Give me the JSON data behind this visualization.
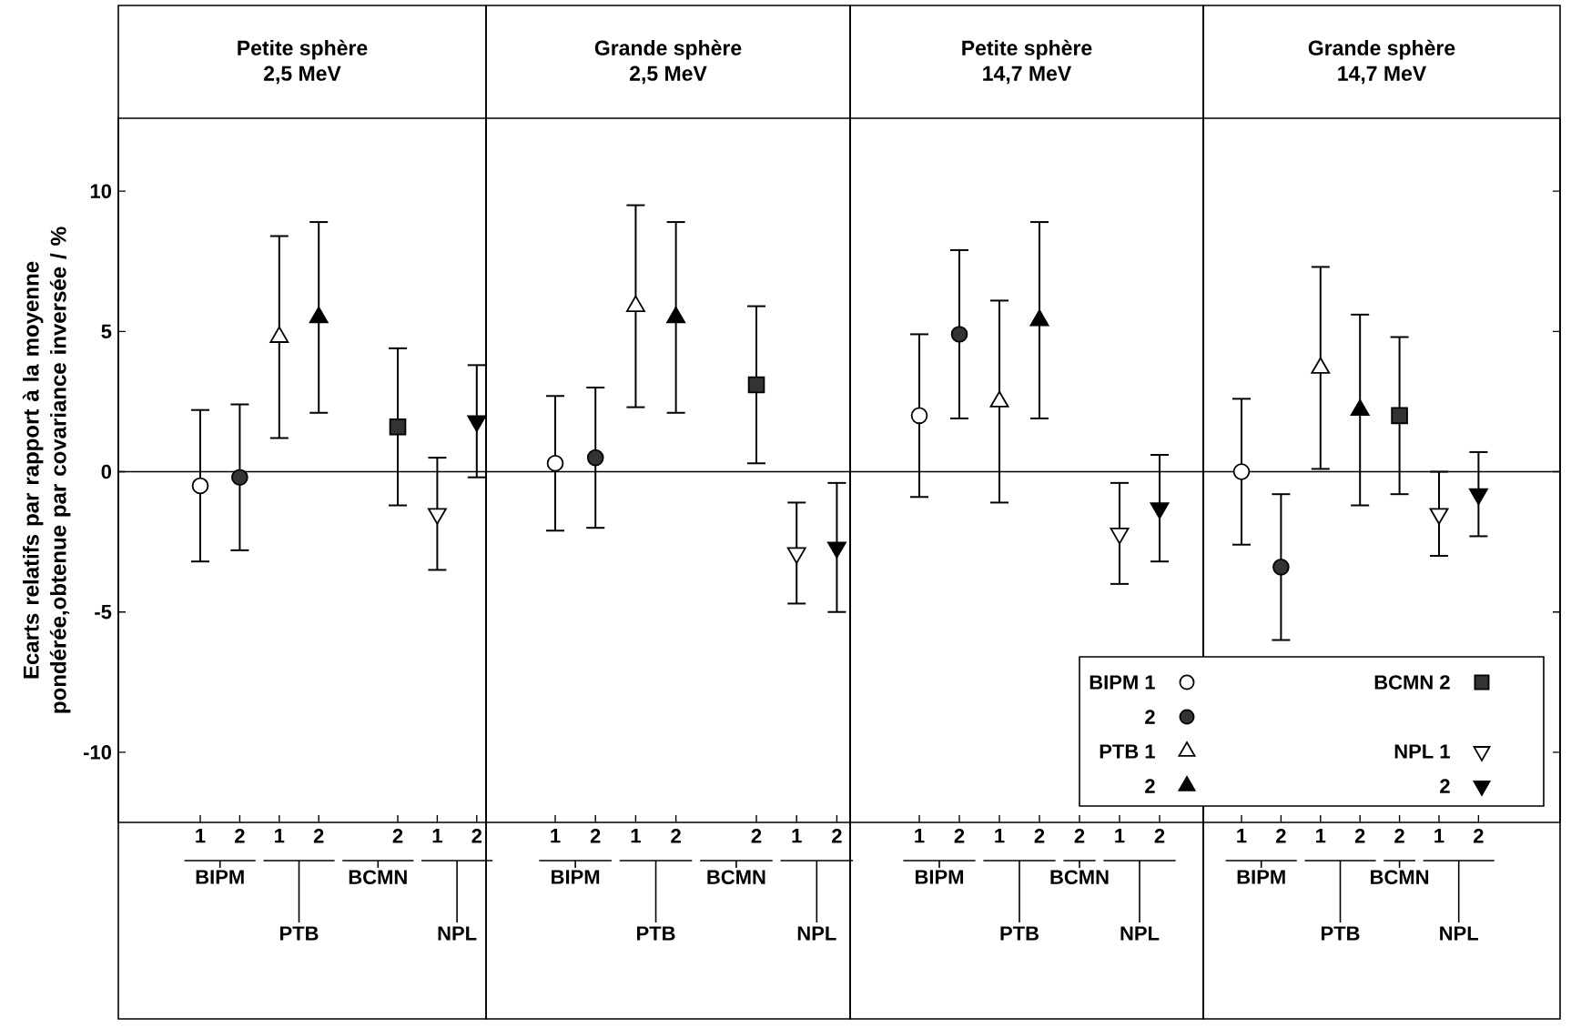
{
  "chart_data": [
    {
      "type": "scatter",
      "title": "Petite sphère",
      "subtitle": "2,5 MeV",
      "ylabel": "Ecarts relatifs par rapport à la moyenne pondérée,obtenue par covariance inversée / %",
      "categories": [
        "1",
        "2",
        "1",
        "2",
        null,
        "2",
        "1",
        "2"
      ],
      "annotations": [
        "BIPM",
        "PTB",
        "BCMN",
        "NPL"
      ],
      "ylim": [
        -12.5,
        12.6
      ],
      "yticks": [
        10,
        5,
        0,
        -5,
        -10
      ],
      "ref_lines": [
        {
          "axis": "y",
          "value": 0
        }
      ],
      "series": [
        {
          "marker": "circle",
          "color": "#ffffff",
          "values": [
            -0.5,
            null,
            null,
            null,
            null,
            null,
            null,
            null
          ],
          "errors": [
            2.7,
            null,
            null,
            null,
            null,
            null,
            null,
            null
          ]
        },
        {
          "marker": "circle",
          "color": "#333333",
          "values": [
            null,
            -0.2,
            null,
            null,
            null,
            null,
            null,
            null
          ],
          "errors": [
            null,
            2.6,
            null,
            null,
            null,
            null,
            null,
            null
          ]
        },
        {
          "marker": "triangle",
          "color": "#ffffff",
          "values": [
            null,
            null,
            4.8,
            null,
            null,
            null,
            null,
            null
          ],
          "errors": [
            null,
            null,
            3.6,
            null,
            null,
            null,
            null,
            null
          ]
        },
        {
          "marker": "triangle",
          "color": "#000000",
          "values": [
            null,
            null,
            null,
            5.5,
            null,
            null,
            null,
            null
          ],
          "errors": [
            null,
            null,
            null,
            3.4,
            null,
            null,
            null,
            null
          ]
        },
        {
          "marker": "square",
          "color": "#333333",
          "values": [
            null,
            null,
            null,
            null,
            null,
            1.6,
            null,
            null
          ],
          "errors": [
            null,
            null,
            null,
            null,
            null,
            2.8,
            null,
            null
          ]
        },
        {
          "marker": "triangle down",
          "color": "#ffffff",
          "values": [
            null,
            null,
            null,
            null,
            null,
            null,
            -1.5,
            null
          ],
          "errors": [
            null,
            null,
            null,
            null,
            null,
            null,
            2.0,
            null
          ]
        },
        {
          "marker": "triangle down",
          "color": "#000000",
          "values": [
            null,
            null,
            null,
            null,
            null,
            null,
            null,
            1.8
          ],
          "errors": [
            null,
            null,
            null,
            null,
            null,
            null,
            null,
            2.0
          ]
        }
      ]
    },
    {
      "type": "scatter",
      "title": "Grande sphère",
      "subtitle": "2,5 MeV",
      "categories": [
        "1",
        "2",
        "1",
        "2",
        null,
        "2",
        "1",
        "2"
      ],
      "annotations": [
        "BIPM",
        "PTB",
        "BCMN",
        "NPL"
      ],
      "ylim": [
        -12.5,
        12.6
      ],
      "yticks": [
        10,
        5,
        0,
        -5,
        -10
      ],
      "tick_labels": "x",
      "ref_lines": [
        {
          "axis": "y",
          "value": 0
        }
      ],
      "series": [
        {
          "marker": "circle",
          "color": "#ffffff",
          "values": [
            0.3,
            null,
            null,
            null,
            null,
            null,
            null,
            null
          ],
          "errors": [
            2.4,
            null,
            null,
            null,
            null,
            null,
            null,
            null
          ]
        },
        {
          "marker": "circle",
          "color": "#333333",
          "values": [
            null,
            0.5,
            null,
            null,
            null,
            null,
            null,
            null
          ],
          "errors": [
            null,
            2.5,
            null,
            null,
            null,
            null,
            null,
            null
          ]
        },
        {
          "marker": "triangle",
          "color": "#ffffff",
          "values": [
            null,
            null,
            5.9,
            null,
            null,
            null,
            null,
            null
          ],
          "errors": [
            null,
            null,
            3.6,
            null,
            null,
            null,
            null,
            null
          ]
        },
        {
          "marker": "triangle",
          "color": "#000000",
          "values": [
            null,
            null,
            null,
            5.5,
            null,
            null,
            null,
            null
          ],
          "errors": [
            null,
            null,
            null,
            3.4,
            null,
            null,
            null,
            null
          ]
        },
        {
          "marker": "square",
          "color": "#333333",
          "values": [
            null,
            null,
            null,
            null,
            null,
            3.1,
            null,
            null
          ],
          "errors": [
            null,
            null,
            null,
            null,
            null,
            2.8,
            null,
            null
          ]
        },
        {
          "marker": "triangle down",
          "color": "#ffffff",
          "values": [
            null,
            null,
            null,
            null,
            null,
            null,
            -2.9,
            null
          ],
          "errors": [
            null,
            null,
            null,
            null,
            null,
            null,
            1.8,
            null
          ]
        },
        {
          "marker": "triangle down",
          "color": "#000000",
          "values": [
            null,
            null,
            null,
            null,
            null,
            null,
            null,
            -2.7
          ],
          "errors": [
            null,
            null,
            null,
            null,
            null,
            null,
            null,
            2.3
          ]
        }
      ]
    },
    {
      "type": "scatter",
      "title": "Petite sphère",
      "subtitle": "14,7 MeV",
      "categories": [
        "1",
        "2",
        "1",
        "2",
        "2",
        "1",
        "2"
      ],
      "annotations": [
        "BIPM",
        "PTB",
        "BCMN",
        "NPL"
      ],
      "ylim": [
        -12.5,
        12.6
      ],
      "yticks": [
        10,
        5,
        0,
        -5,
        -10
      ],
      "tick_labels": "x",
      "ref_lines": [
        {
          "axis": "y",
          "value": 0
        }
      ],
      "series": [
        {
          "marker": "circle",
          "color": "#ffffff",
          "values": [
            2.0,
            null,
            null,
            null,
            null,
            null,
            null
          ],
          "errors": [
            2.9,
            null,
            null,
            null,
            null,
            null,
            null
          ]
        },
        {
          "marker": "circle",
          "color": "#333333",
          "values": [
            null,
            4.9,
            null,
            null,
            null,
            null,
            null
          ],
          "errors": [
            null,
            3.0,
            null,
            null,
            null,
            null,
            null
          ]
        },
        {
          "marker": "triangle",
          "color": "#ffffff",
          "values": [
            null,
            null,
            2.5,
            null,
            null,
            null,
            null
          ],
          "errors": [
            null,
            null,
            3.6,
            null,
            null,
            null,
            null
          ]
        },
        {
          "marker": "triangle",
          "color": "#000000",
          "values": [
            null,
            null,
            null,
            5.4,
            null,
            null,
            null
          ],
          "errors": [
            null,
            null,
            null,
            3.5,
            null,
            null,
            null
          ]
        },
        {
          "marker": "triangle down",
          "color": "#ffffff",
          "values": [
            null,
            null,
            null,
            null,
            null,
            -2.2,
            null
          ],
          "errors": [
            null,
            null,
            null,
            null,
            null,
            1.8,
            null
          ]
        },
        {
          "marker": "triangle down",
          "color": "#000000",
          "values": [
            null,
            null,
            null,
            null,
            null,
            null,
            -1.3
          ],
          "errors": [
            null,
            null,
            null,
            null,
            null,
            null,
            1.9
          ]
        }
      ]
    },
    {
      "type": "scatter",
      "title": "Grande sphère",
      "subtitle": "14,7 MeV",
      "categories": [
        "1",
        "2",
        "1",
        "2",
        "2",
        "1",
        "2"
      ],
      "annotations": [
        "BIPM",
        "PTB",
        "BCMN",
        "NPL"
      ],
      "ylim": [
        -12.5,
        12.6
      ],
      "yticks": [
        10,
        5,
        0,
        -5,
        -10
      ],
      "tick_labels": "x",
      "legend": "bottom left",
      "ref_lines": [
        {
          "axis": "y",
          "value": 0
        }
      ],
      "series": [
        {
          "name": "BIPM 1",
          "marker": "circle",
          "color": "#ffffff",
          "values": [
            0.0,
            null,
            null,
            null,
            null,
            null,
            null
          ],
          "errors": [
            2.6,
            null,
            null,
            null,
            null,
            null,
            null
          ]
        },
        {
          "name": "2",
          "marker": "circle",
          "color": "#333333",
          "values": [
            null,
            -3.4,
            null,
            null,
            null,
            null,
            null
          ],
          "errors": [
            null,
            2.6,
            null,
            null,
            null,
            null,
            null
          ]
        },
        {
          "name": "PTB 1",
          "marker": "triangle",
          "color": "#ffffff",
          "values": [
            null,
            null,
            3.7,
            null,
            null,
            null,
            null
          ],
          "errors": [
            null,
            null,
            3.6,
            null,
            null,
            null,
            null
          ]
        },
        {
          "name": "2",
          "marker": "triangle",
          "color": "#000000",
          "values": [
            null,
            null,
            null,
            2.2,
            null,
            null,
            null
          ],
          "errors": [
            null,
            null,
            null,
            3.4,
            null,
            null,
            null
          ]
        },
        {
          "name": "BCMN 2",
          "marker": "square",
          "color": "#333333",
          "values": [
            null,
            null,
            null,
            null,
            2.0,
            null,
            null
          ],
          "errors": [
            null,
            null,
            null,
            null,
            2.8,
            null,
            null
          ]
        },
        {
          "name": "NPL 1",
          "marker": "triangle down",
          "color": "#ffffff",
          "values": [
            null,
            null,
            null,
            null,
            null,
            -1.5,
            null
          ],
          "errors": [
            null,
            null,
            null,
            null,
            null,
            1.5,
            null
          ]
        },
        {
          "name": "2",
          "marker": "triangle down",
          "color": "#000000",
          "values": [
            null,
            null,
            null,
            null,
            null,
            null,
            -0.8
          ],
          "errors": [
            null,
            null,
            null,
            null,
            null,
            null,
            1.5
          ]
        }
      ]
    }
  ]
}
